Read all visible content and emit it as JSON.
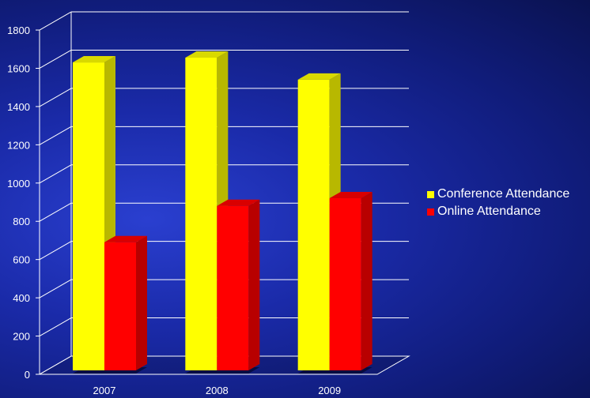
{
  "chart_data": {
    "type": "bar",
    "categories": [
      "2007",
      "2008",
      "2009"
    ],
    "series": [
      {
        "name": "Conference Attendance",
        "values": [
          1610,
          1635,
          1520
        ],
        "color": "#ffff00"
      },
      {
        "name": "Online Attendance",
        "values": [
          670,
          860,
          900
        ],
        "color": "#ff0000"
      }
    ],
    "ylim": [
      0,
      1800
    ],
    "yticks": [
      "0",
      "200",
      "400",
      "600",
      "800",
      "1000",
      "1200",
      "1400",
      "1600",
      "1800"
    ],
    "grid": true,
    "legend_position": "right",
    "three_d": true
  }
}
